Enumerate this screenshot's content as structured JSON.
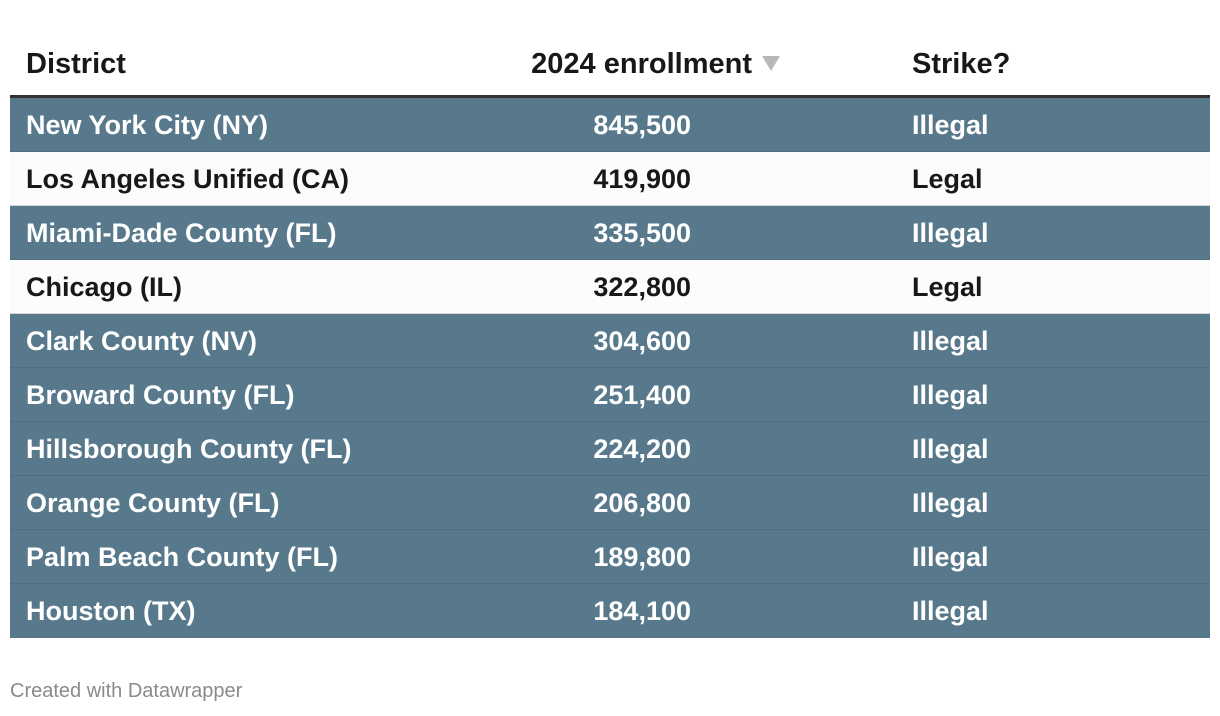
{
  "chart_data": {
    "type": "table",
    "columns": [
      "District",
      "2024 enrollment",
      "Strike?"
    ],
    "sorted_by": "2024 enrollment",
    "sort_direction": "descending",
    "rows": [
      {
        "district": "New York City (NY)",
        "enrollment": "845,500",
        "enrollment_value": 845500,
        "strike": "Illegal"
      },
      {
        "district": "Los Angeles Unified (CA)",
        "enrollment": "419,900",
        "enrollment_value": 419900,
        "strike": "Legal"
      },
      {
        "district": "Miami-Dade County (FL)",
        "enrollment": "335,500",
        "enrollment_value": 335500,
        "strike": "Illegal"
      },
      {
        "district": "Chicago (IL)",
        "enrollment": "322,800",
        "enrollment_value": 322800,
        "strike": "Legal"
      },
      {
        "district": "Clark County (NV)",
        "enrollment": "304,600",
        "enrollment_value": 304600,
        "strike": "Illegal"
      },
      {
        "district": "Broward County (FL)",
        "enrollment": "251,400",
        "enrollment_value": 251400,
        "strike": "Illegal"
      },
      {
        "district": "Hillsborough County (FL)",
        "enrollment": "224,200",
        "enrollment_value": 224200,
        "strike": "Illegal"
      },
      {
        "district": "Orange County (FL)",
        "enrollment": "206,800",
        "enrollment_value": 206800,
        "strike": "Illegal"
      },
      {
        "district": "Palm Beach County (FL)",
        "enrollment": "189,800",
        "enrollment_value": 189800,
        "strike": "Illegal"
      },
      {
        "district": "Houston (TX)",
        "enrollment": "184,100",
        "enrollment_value": 184100,
        "strike": "Illegal"
      }
    ],
    "row_highlight": {
      "Illegal": "#58798c",
      "Legal": "#fcfcfc"
    }
  },
  "icons": {
    "sort": "sort-descending-icon"
  },
  "footer": {
    "credit": "Created with Datawrapper"
  }
}
